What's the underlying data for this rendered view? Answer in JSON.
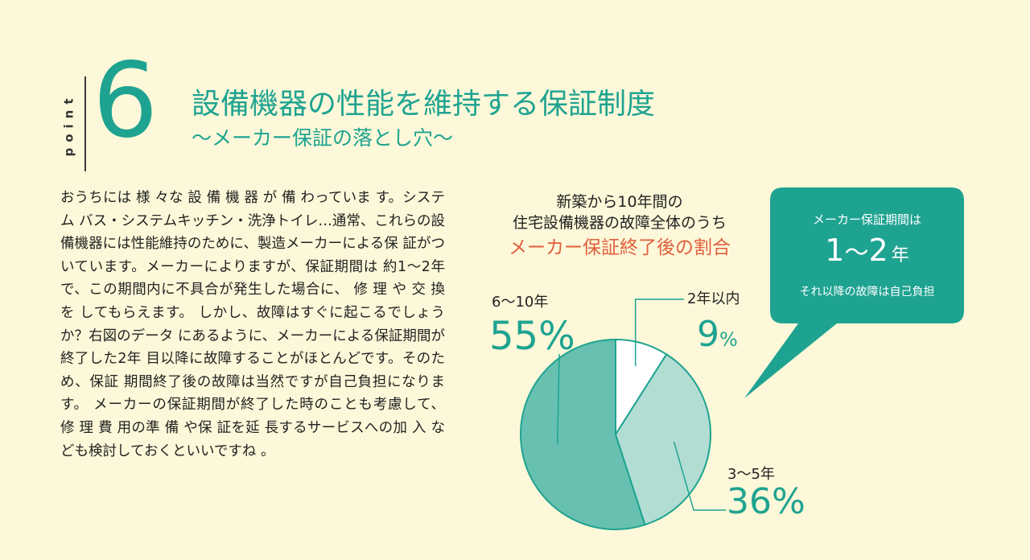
{
  "header": {
    "point_label": "point",
    "point_number": "6",
    "title": "設備機器の性能を維持する保証制度",
    "subtitle": "～メーカー保証の落とし穴～"
  },
  "body": {
    "paragraph": "おうちには 様 々な 設 備 機 器 が 備 わっていま す。システム バス・システムキッチン・洗浄トイレ…通常、これらの設 備機器には性能維持のために、製造メーカーによる保 証がついています。メーカーによりますが、保証期間は 約1～2年で、この期間内に不具合が発生した場合に、 修 理 や 交 換 を してもらえます。 しかし、故障はすぐに起こるでしょうか？右図のデータ にあるように、メーカーによる保証期間が終了した2年 目以降に故障することがほとんどです。そのため、保証 期間終了後の故障は当然ですが自己負担になります。 メーカーの保証期間が終了した時のことも考慮して、 修 理 費 用の準 備 や保 証を延 長するサービスへの加 入 なども検討しておくといいですね 。"
  },
  "chart_data": {
    "type": "pie",
    "title_line1": "新築から10年間の",
    "title_line2": "住宅設備機器の故障全体のうち",
    "title_highlight": "メーカー保証終了後の割合",
    "slices": [
      {
        "label": "2年以内",
        "value": 9,
        "display": "9",
        "unit": "%",
        "color": "#ffffff"
      },
      {
        "label": "3〜5年",
        "value": 36,
        "display": "36",
        "unit": "%",
        "color": "#b2ddd3"
      },
      {
        "label": "6〜10年",
        "value": 55,
        "display": "55",
        "unit": "%",
        "color": "#67c0b0"
      }
    ],
    "stroke_color": "#1fa391"
  },
  "callout": {
    "line1": "メーカー保証期間は",
    "big_a": "1",
    "big_tilde": "〜",
    "big_b": "2",
    "big_unit": "年",
    "line3": "それ以降の故障は自己負担",
    "color": "#1fa391"
  }
}
